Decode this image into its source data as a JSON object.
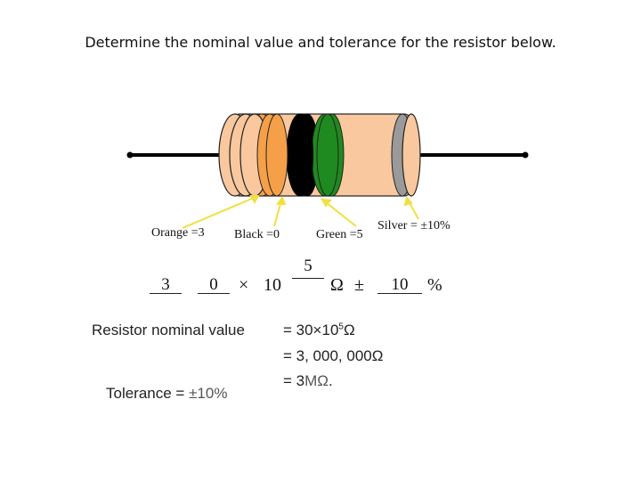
{
  "title": "Determine the nominal value and tolerance for the resistor below.",
  "colors": {
    "body": "#F9C89E",
    "band_orange": "#F5A048",
    "band_black": "#000000",
    "band_green": "#1F8A1F",
    "band_silver": "#9A9A9A",
    "arrow": "#F0E040",
    "lead": "#000000"
  },
  "bands": {
    "band1": "Orange =3",
    "band2": "Black =0",
    "band3": "Green =5",
    "band4": "Silver = ±10%"
  },
  "answer": {
    "digit1": "3",
    "digit2": "0",
    "times": "×",
    "ten": "10",
    "exponent": "5",
    "ohm": "Ω",
    "pm": "±",
    "tolerance": "10",
    "percent": "%"
  },
  "result": {
    "nominal_label": "Resistor nominal value",
    "line1_prefix": "= 30×10",
    "line1_exp": "5",
    "line1_unit": "Ω",
    "line2": "= 3, 000, 000Ω",
    "line3_prefix": "= 3",
    "line3_unit": "MΩ",
    "line3_suffix": ".",
    "tolerance_prefix": "Tolerance = ",
    "tolerance_value": "±10%"
  }
}
